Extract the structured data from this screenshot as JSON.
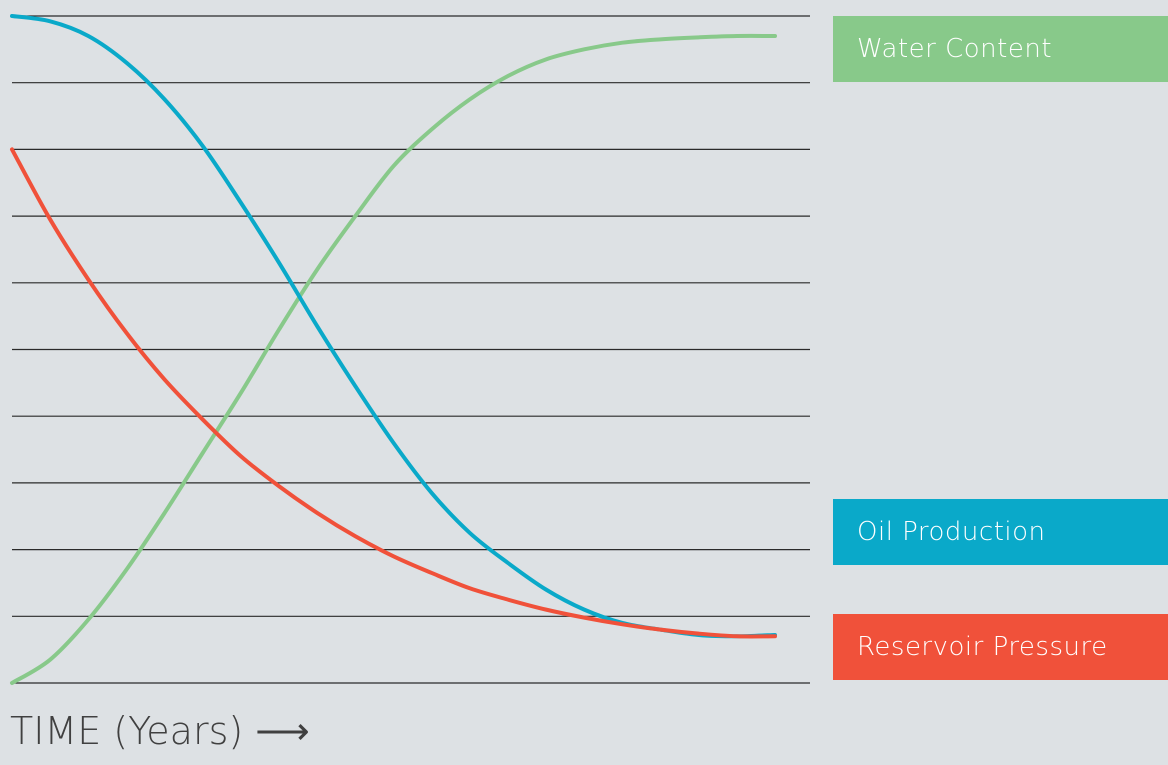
{
  "chart_data": {
    "type": "line",
    "xlabel": "TIME (Years) ⟶",
    "ylabel": "",
    "xlim": [
      0,
      100
    ],
    "ylim": [
      0,
      10
    ],
    "grid": true,
    "gridline_count": 11,
    "legend_placement": "right",
    "series": [
      {
        "name": "Water Content",
        "color": "#88c98a",
        "x": [
          0,
          5,
          10,
          15,
          20,
          25,
          30,
          35,
          40,
          45,
          50,
          55,
          60,
          65,
          70,
          75,
          80,
          85,
          90,
          95,
          100
        ],
        "values": [
          0.0,
          0.35,
          0.95,
          1.7,
          2.55,
          3.45,
          4.35,
          5.3,
          6.2,
          7.0,
          7.75,
          8.3,
          8.75,
          9.1,
          9.35,
          9.5,
          9.6,
          9.65,
          9.68,
          9.7,
          9.7
        ]
      },
      {
        "name": "Oil Production",
        "color": "#0aa9c9",
        "x": [
          0,
          5,
          10,
          15,
          20,
          25,
          30,
          35,
          40,
          45,
          50,
          55,
          60,
          65,
          70,
          75,
          80,
          85,
          90,
          95,
          100
        ],
        "values": [
          10.0,
          9.92,
          9.7,
          9.3,
          8.75,
          8.05,
          7.2,
          6.3,
          5.35,
          4.45,
          3.6,
          2.85,
          2.25,
          1.8,
          1.4,
          1.1,
          0.9,
          0.8,
          0.72,
          0.7,
          0.72
        ]
      },
      {
        "name": "Reservoir Pressure",
        "color": "#f0513a",
        "x": [
          0,
          5,
          10,
          15,
          20,
          25,
          30,
          35,
          40,
          45,
          50,
          55,
          60,
          65,
          70,
          75,
          80,
          85,
          90,
          95,
          100
        ],
        "values": [
          8.0,
          6.95,
          6.05,
          5.25,
          4.55,
          3.95,
          3.4,
          2.95,
          2.55,
          2.2,
          1.9,
          1.65,
          1.42,
          1.25,
          1.1,
          0.98,
          0.88,
          0.8,
          0.74,
          0.7,
          0.7
        ]
      }
    ]
  },
  "legend": [
    {
      "label": "Water Content",
      "color": "#88c98a"
    },
    {
      "label": "Oil Production",
      "color": "#0aa9c9"
    },
    {
      "label": "Reservoir Pressure",
      "color": "#f0513a"
    }
  ],
  "colors": {
    "background": "#dde1e4",
    "gridline": "#2a2a2a"
  }
}
